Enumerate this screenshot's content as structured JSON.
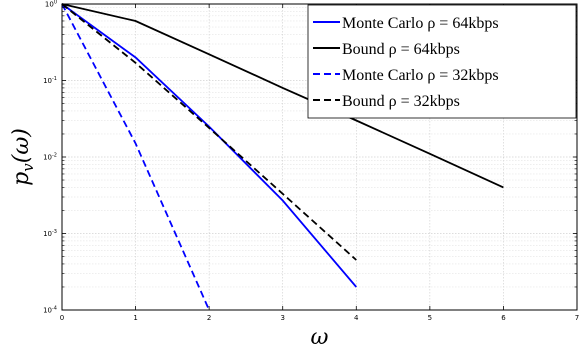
{
  "chart_data": {
    "type": "line",
    "title": "",
    "xlabel": "ω",
    "ylabel": "p_v(ω)",
    "xlim": [
      0,
      7
    ],
    "ylim": [
      0.0001,
      1
    ],
    "yscale": "log",
    "grid": true,
    "legend_position": "top-right",
    "xticks": [
      "0",
      "1",
      "2",
      "3",
      "4",
      "5",
      "6",
      "7"
    ],
    "yticks": [
      {
        "value": 1,
        "base": "10",
        "exp": "0"
      },
      {
        "value": 0.1,
        "base": "10",
        "exp": "-1"
      },
      {
        "value": 0.01,
        "base": "10",
        "exp": "-2"
      },
      {
        "value": 0.001,
        "base": "10",
        "exp": "-3"
      },
      {
        "value": 0.0001,
        "base": "10",
        "exp": "-4"
      }
    ],
    "series": [
      {
        "name": "Monte Carlo ρ = 64kbps",
        "color": "#0000ff",
        "style": "solid",
        "x": [
          0,
          1,
          2,
          3,
          4
        ],
        "y": [
          1,
          0.2,
          0.025,
          0.0027,
          0.0002
        ]
      },
      {
        "name": "Bound ρ = 64kbps",
        "color": "#000000",
        "style": "solid",
        "x": [
          0,
          1,
          2,
          3,
          4,
          5,
          6
        ],
        "y": [
          1,
          0.6,
          0.22,
          0.08,
          0.03,
          0.011,
          0.004
        ]
      },
      {
        "name": "Monte Carlo ρ = 32kbps",
        "color": "#0000ff",
        "style": "dashed",
        "x": [
          0,
          1,
          2
        ],
        "y": [
          1,
          0.015,
          0.0001
        ]
      },
      {
        "name": "Bound ρ = 32kbps",
        "color": "#000000",
        "style": "dashed",
        "x": [
          0,
          1,
          2,
          3,
          4
        ],
        "y": [
          1,
          0.17,
          0.024,
          0.0033,
          0.00045
        ]
      }
    ]
  }
}
